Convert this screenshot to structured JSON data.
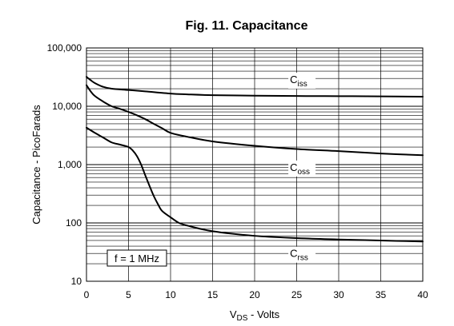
{
  "chart_data": {
    "type": "line",
    "title": "Fig. 11. Capacitance",
    "xlabel": {
      "main": "V",
      "sub": "DS",
      "rest": " - Volts"
    },
    "ylabel": "Capacitance - PicoFarads",
    "xlim": [
      0,
      40
    ],
    "ylim": [
      10,
      100000
    ],
    "yscale": "log",
    "grid": true,
    "x_ticks": [
      0,
      5,
      10,
      15,
      20,
      25,
      30,
      35,
      40
    ],
    "x_tick_labels": [
      "0",
      "5",
      "10",
      "15",
      "20",
      "25",
      "30",
      "35",
      "40"
    ],
    "y_ticks": [
      10,
      100,
      1000,
      10000,
      100000
    ],
    "y_tick_labels": [
      "10",
      "100",
      "1,000",
      "10,000",
      "100,000"
    ],
    "annotation": "f = 1 MHz",
    "series": [
      {
        "name": "Ciss",
        "label_main": "C",
        "label_sub": "iss",
        "x": [
          0,
          0.5,
          1,
          2,
          3,
          5,
          7,
          10,
          12,
          15,
          20,
          25,
          30,
          35,
          40
        ],
        "y": [
          32000,
          28000,
          25000,
          21500,
          20000,
          19000,
          18000,
          16500,
          16000,
          15500,
          15200,
          15000,
          14900,
          14800,
          14600
        ]
      },
      {
        "name": "Coss",
        "label_main": "C",
        "label_sub": "oss",
        "x": [
          0,
          0.5,
          1,
          2,
          3,
          4,
          5,
          6,
          7,
          8,
          9,
          10,
          12,
          15,
          20,
          25,
          30,
          35,
          40
        ],
        "y": [
          23000,
          18000,
          15000,
          12000,
          10000,
          9000,
          8000,
          7000,
          6000,
          5000,
          4200,
          3500,
          3000,
          2500,
          2100,
          1850,
          1700,
          1550,
          1450
        ]
      },
      {
        "name": "Crss",
        "label_main": "C",
        "label_sub": "rss",
        "x": [
          0,
          1,
          2,
          3,
          4,
          5,
          5.5,
          6,
          6.5,
          7,
          7.5,
          8,
          8.5,
          9,
          10,
          11,
          12,
          15,
          20,
          25,
          30,
          35,
          40
        ],
        "y": [
          4300,
          3500,
          2900,
          2400,
          2200,
          2000,
          1750,
          1400,
          1000,
          650,
          430,
          290,
          210,
          160,
          125,
          100,
          90,
          72,
          60,
          55,
          52,
          50,
          48
        ]
      }
    ],
    "label_positions": [
      {
        "series": "Ciss",
        "x": 24.2,
        "y": 25000
      },
      {
        "series": "Coss",
        "x": 24.2,
        "y": 780
      },
      {
        "series": "Crss",
        "x": 24.2,
        "y": 26
      }
    ]
  }
}
